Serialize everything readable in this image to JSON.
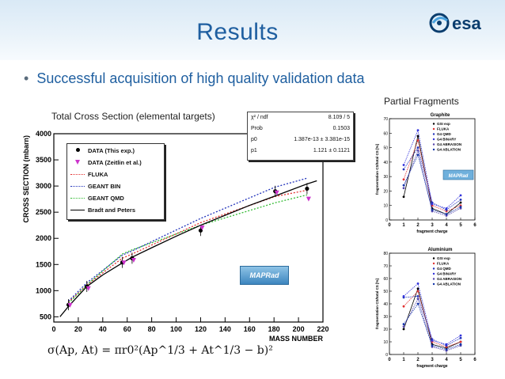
{
  "header": {
    "title": "Results",
    "logo_text": "esa",
    "logo_icon": "esa-swirl-icon"
  },
  "bullet": "Successful acquisition of high quality validation data",
  "captions": {
    "left": "Total Cross Section (elemental targets)",
    "right": "Partial Fragments"
  },
  "main_chart": {
    "stat_box": {
      "title": "χ² / ndf",
      "title_value": "8.109 / 5",
      "rows": [
        {
          "label": "Prob",
          "value": "0.1503"
        },
        {
          "label": "p0",
          "value": "1.387e-13 ± 3.381e-15"
        },
        {
          "label": "p1",
          "value": "1.121 ± 0.1121"
        }
      ]
    },
    "legend": [
      {
        "label": "DATA (This exp.)",
        "style": "dot",
        "color": "#000000"
      },
      {
        "label": "DATA (Zeitlin et al.)",
        "style": "triangle",
        "color": "#cc33cc"
      },
      {
        "label": "FLUKA",
        "style": "dotted",
        "color": "#e23030"
      },
      {
        "label": "GEANT BIN",
        "style": "dotted",
        "color": "#2233bb"
      },
      {
        "label": "GEANT QMD",
        "style": "dotted",
        "color": "#33bb33"
      },
      {
        "label": "Bradt and Peters",
        "style": "solid",
        "color": "#000000"
      }
    ],
    "badge": "MAPRad",
    "formula": "σ(Ap, At) = πr0²(Ap^1/3 + At^1/3 − b)²"
  },
  "chart_data": [
    {
      "type": "line",
      "title": "",
      "xlabel": "MASS NUMBER",
      "ylabel": "CROSS SECTION (mbarn)",
      "xlim": [
        0,
        220
      ],
      "ylim": [
        400,
        4000
      ],
      "xticks": [
        0,
        20,
        40,
        60,
        80,
        100,
        120,
        140,
        160,
        180,
        200,
        220
      ],
      "yticks": [
        500,
        1000,
        1500,
        2000,
        2500,
        3000,
        3500,
        4000
      ],
      "series": [
        {
          "name": "DATA (This exp.)",
          "x": [
            12,
            27,
            56,
            64,
            120,
            181,
            207
          ],
          "y": [
            730,
            1080,
            1540,
            1620,
            2150,
            2900,
            2950
          ]
        },
        {
          "name": "DATA (Zeitlin et al.)",
          "x": [
            12,
            27,
            56,
            64,
            120,
            181,
            207
          ],
          "y": [
            720,
            1040,
            1530,
            1580,
            2200,
            2870,
            2750
          ]
        },
        {
          "name": "FLUKA",
          "x": [
            12,
            27,
            56,
            64,
            120,
            181,
            207
          ],
          "y": [
            780,
            1110,
            1620,
            1700,
            2300,
            2800,
            2920
          ]
        },
        {
          "name": "GEANT BIN",
          "x": [
            12,
            27,
            56,
            64,
            120,
            181,
            207
          ],
          "y": [
            800,
            1150,
            1680,
            1760,
            2380,
            2980,
            3150
          ]
        },
        {
          "name": "GEANT QMD",
          "x": [
            12,
            27,
            56,
            64,
            120,
            181,
            207
          ],
          "y": [
            760,
            1110,
            1700,
            1780,
            2250,
            2680,
            2830
          ]
        },
        {
          "name": "Bradt and Peters",
          "x": [
            5,
            12,
            27,
            40,
            56,
            64,
            80,
            100,
            120,
            140,
            160,
            181,
            207,
            215
          ],
          "y": [
            500,
            700,
            1080,
            1300,
            1530,
            1640,
            1820,
            2040,
            2250,
            2440,
            2630,
            2810,
            3040,
            3100
          ]
        }
      ]
    },
    {
      "type": "line",
      "title": "Graphite",
      "xlabel": "fragment charge",
      "ylabel": "fragmentation CS/total CS [%]",
      "xlim": [
        0,
        6
      ],
      "ylim": [
        0,
        70
      ],
      "xticks": [
        0,
        1,
        2,
        3,
        4,
        5,
        6
      ],
      "yticks": [
        0,
        10,
        20,
        30,
        40,
        50,
        60,
        70
      ],
      "series": [
        {
          "name": "GSI exp",
          "x": [
            1,
            2,
            3,
            4,
            5
          ],
          "y": [
            16,
            58,
            8,
            4,
            12
          ]
        },
        {
          "name": "FLUKA",
          "x": [
            1,
            2,
            3,
            4,
            5
          ],
          "y": [
            28,
            55,
            10,
            6,
            10
          ]
        },
        {
          "name": "G4 QMD",
          "x": [
            1,
            2,
            3,
            4,
            5
          ],
          "y": [
            35,
            50,
            12,
            7,
            14
          ]
        },
        {
          "name": "G4 BINARY",
          "x": [
            1,
            2,
            3,
            4,
            5
          ],
          "y": [
            38,
            62,
            11,
            8,
            17
          ]
        },
        {
          "name": "G4 ABRASION",
          "x": [
            1,
            2,
            3,
            4,
            5
          ],
          "y": [
            22,
            48,
            6,
            3,
            8
          ]
        },
        {
          "name": "G4 ABLATION",
          "x": [
            1,
            2,
            3,
            4,
            5
          ],
          "y": [
            24,
            45,
            7,
            4,
            9
          ]
        }
      ],
      "badge": "MAPRad"
    },
    {
      "type": "line",
      "title": "Aluminium",
      "xlabel": "fragment charge",
      "ylabel": "fragmentation CS/total CS [%]",
      "xlim": [
        0,
        6
      ],
      "ylim": [
        0,
        80
      ],
      "xticks": [
        0,
        1,
        2,
        3,
        4,
        5,
        6
      ],
      "yticks": [
        0,
        10,
        20,
        30,
        40,
        50,
        60,
        70,
        80
      ],
      "series": [
        {
          "name": "GSI exp",
          "x": [
            1,
            2,
            3,
            4,
            5
          ],
          "y": [
            20,
            52,
            8,
            5,
            10
          ]
        },
        {
          "name": "FLUKA",
          "x": [
            1,
            2,
            3,
            4,
            5
          ],
          "y": [
            38,
            50,
            10,
            6,
            10
          ]
        },
        {
          "name": "G4 QMD",
          "x": [
            1,
            2,
            3,
            4,
            5
          ],
          "y": [
            45,
            46,
            12,
            7,
            13
          ]
        },
        {
          "name": "G4 BINARY",
          "x": [
            1,
            2,
            3,
            4,
            5
          ],
          "y": [
            46,
            56,
            11,
            8,
            15
          ]
        },
        {
          "name": "G4 ABRASION",
          "x": [
            1,
            2,
            3,
            4,
            5
          ],
          "y": [
            22,
            44,
            6,
            3,
            7
          ]
        },
        {
          "name": "G4 ABLATION",
          "x": [
            1,
            2,
            3,
            4,
            5
          ],
          "y": [
            24,
            40,
            7,
            4,
            8
          ]
        }
      ]
    }
  ],
  "colors": {
    "title": "#1f5fa0",
    "bullet": "#1f5fa0",
    "header_band": "#d9e9f6"
  }
}
